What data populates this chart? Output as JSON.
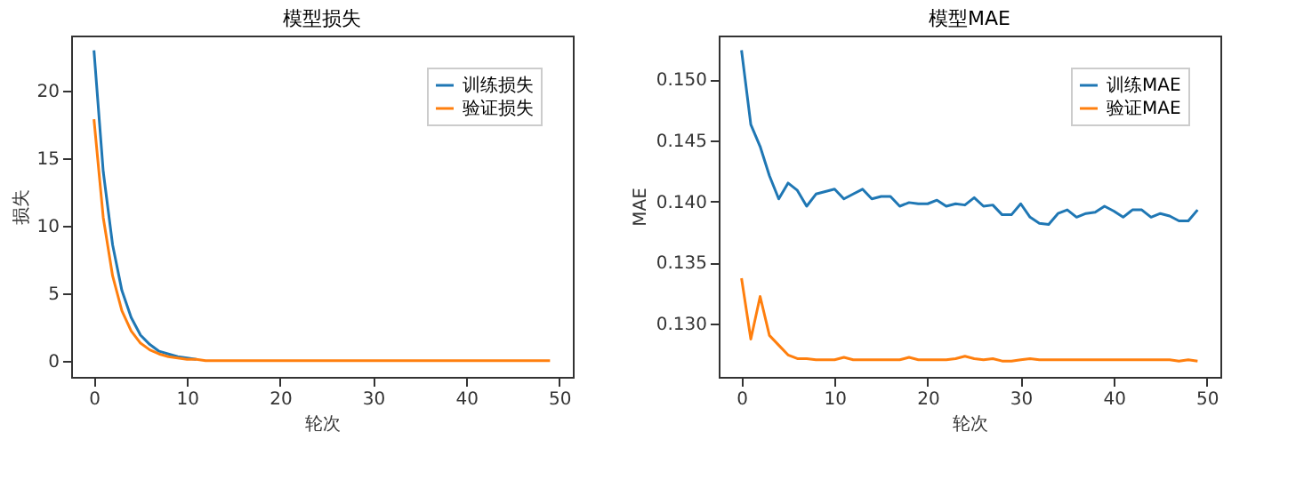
{
  "chart_data": [
    {
      "type": "line",
      "title": "模型损失",
      "xlabel": "轮次",
      "ylabel": "损失",
      "x": [
        0,
        1,
        2,
        3,
        4,
        5,
        6,
        7,
        8,
        9,
        10,
        11,
        12,
        13,
        14,
        15,
        16,
        17,
        18,
        19,
        20,
        21,
        22,
        23,
        24,
        25,
        26,
        27,
        28,
        29,
        30,
        31,
        32,
        33,
        34,
        35,
        36,
        37,
        38,
        39,
        40,
        41,
        42,
        43,
        44,
        45,
        46,
        47,
        48,
        49
      ],
      "series": [
        {
          "name": "训练损失",
          "color": "#1f77b4",
          "values": [
            23.0,
            14.0,
            8.6,
            5.2,
            3.2,
            1.9,
            1.2,
            0.7,
            0.5,
            0.3,
            0.2,
            0.1,
            null,
            null,
            null,
            null,
            null,
            null,
            null,
            null,
            null,
            null,
            null,
            null,
            null,
            null,
            null,
            null,
            null,
            null,
            null,
            null,
            null,
            null,
            null,
            null,
            null,
            null,
            null,
            null,
            null,
            null,
            null,
            null,
            null,
            null,
            null,
            null,
            null,
            null
          ]
        },
        {
          "name": "验证损失",
          "color": "#ff7f0e",
          "values": [
            17.9,
            10.6,
            6.3,
            3.7,
            2.2,
            1.3,
            0.8,
            0.5,
            0.3,
            0.2,
            0.1,
            0.1,
            0.0,
            0.0,
            0.0,
            0.0,
            0.0,
            0.0,
            0.0,
            0.0,
            0.0,
            0.0,
            0.0,
            0.0,
            0.0,
            0.0,
            0.0,
            0.0,
            0.0,
            0.0,
            0.0,
            0.0,
            0.0,
            0.0,
            0.0,
            0.0,
            0.0,
            0.0,
            0.0,
            0.0,
            0.0,
            0.0,
            0.0,
            0.0,
            0.0,
            0.0,
            0.0,
            0.0,
            0.0,
            0.0
          ]
        }
      ],
      "xlim": [
        -2.45,
        51.45
      ],
      "ylim": [
        -1.2,
        24.1
      ],
      "xticks": [
        0,
        10,
        20,
        30,
        40,
        50
      ],
      "yticks": [
        0,
        5,
        10,
        15,
        20
      ],
      "grid": false,
      "legend": "top right"
    },
    {
      "type": "line",
      "title": "模型MAE",
      "xlabel": "轮次",
      "ylabel": "MAE",
      "x": [
        0,
        1,
        2,
        3,
        4,
        5,
        6,
        7,
        8,
        9,
        10,
        11,
        12,
        13,
        14,
        15,
        16,
        17,
        18,
        19,
        20,
        21,
        22,
        23,
        24,
        25,
        26,
        27,
        28,
        29,
        30,
        31,
        32,
        33,
        34,
        35,
        36,
        37,
        38,
        39,
        40,
        41,
        42,
        43,
        44,
        45,
        46,
        47,
        48,
        49
      ],
      "series": [
        {
          "name": "训练MAE",
          "color": "#1f77b4",
          "values": [
            0.1524,
            0.1463,
            0.1445,
            0.1421,
            0.1402,
            0.1415,
            0.1409,
            0.1396,
            0.1406,
            0.1408,
            0.141,
            0.1402,
            0.1406,
            0.141,
            0.1402,
            0.1404,
            0.1404,
            0.1396,
            0.1399,
            0.1398,
            0.1398,
            0.1401,
            0.1396,
            0.1398,
            0.1397,
            0.1403,
            0.1396,
            0.1397,
            0.1389,
            0.1389,
            0.1398,
            0.1387,
            0.1382,
            0.1381,
            0.139,
            0.1393,
            0.1387,
            0.139,
            0.1391,
            0.1396,
            0.1392,
            0.1387,
            0.1393,
            0.1393,
            0.1387,
            0.139,
            0.1388,
            0.1384,
            0.1384,
            0.1393
          ]
        },
        {
          "name": "验证MAE",
          "color": "#ff7f0e",
          "values": [
            0.1337,
            0.1287,
            0.1322,
            0.129,
            0.1282,
            0.1274,
            0.1271,
            0.1271,
            0.127,
            0.127,
            0.127,
            0.1272,
            0.127,
            0.127,
            0.127,
            0.127,
            0.127,
            0.127,
            0.1272,
            0.127,
            0.127,
            0.127,
            0.127,
            0.1271,
            0.1273,
            0.1271,
            0.127,
            0.1271,
            0.1269,
            0.1269,
            0.127,
            0.1271,
            0.127,
            0.127,
            0.127,
            0.127,
            0.127,
            0.127,
            0.127,
            0.127,
            0.127,
            0.127,
            0.127,
            0.127,
            0.127,
            0.127,
            0.127,
            0.1269,
            0.127,
            0.1269
          ]
        }
      ],
      "xlim": [
        -2.45,
        51.45
      ],
      "ylim": [
        0.1256,
        0.1536
      ],
      "xticks": [
        0,
        10,
        20,
        30,
        40,
        50
      ],
      "yticks": [
        {
          "value": 0.13,
          "label": "0.130"
        },
        {
          "value": 0.135,
          "label": "0.135"
        },
        {
          "value": 0.14,
          "label": "0.140"
        },
        {
          "value": 0.145,
          "label": "0.145"
        },
        {
          "value": 0.15,
          "label": "0.150"
        }
      ],
      "grid": false,
      "legend": "top right"
    }
  ]
}
